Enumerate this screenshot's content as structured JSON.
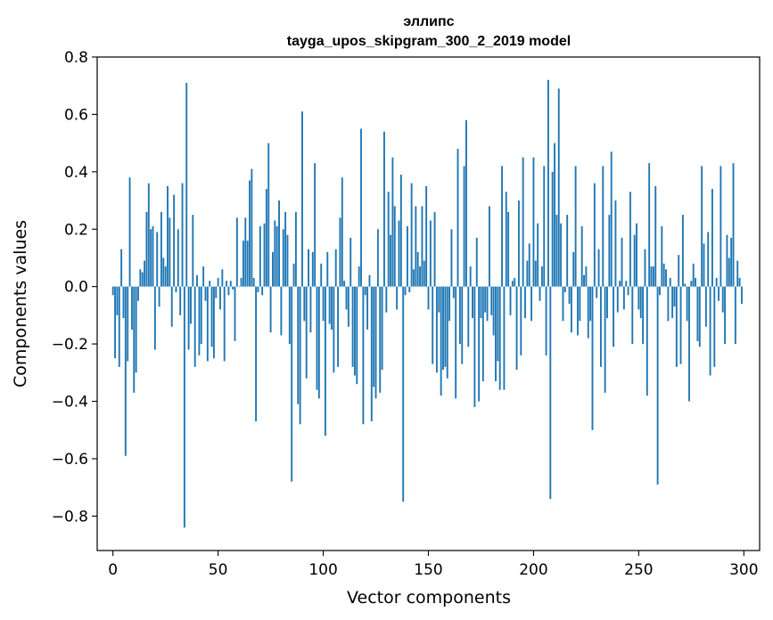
{
  "chart_data": {
    "type": "bar",
    "title": "эллипс",
    "subtitle": "tayga_upos_skipgram_300_2_2019 model",
    "xlabel": "Vector components",
    "ylabel": "Components values",
    "xlim": [
      -7.5,
      307.5
    ],
    "ylim": [
      -0.92,
      0.8
    ],
    "x_ticks": [
      0,
      50,
      100,
      150,
      200,
      250,
      300
    ],
    "x_tick_labels": [
      "0",
      "50",
      "100",
      "150",
      "200",
      "250",
      "300"
    ],
    "y_ticks": [
      0.8,
      0.6,
      0.4,
      0.2,
      0.0,
      -0.2,
      -0.4,
      -0.6,
      -0.8
    ],
    "y_tick_labels": [
      "0.8",
      "0.6",
      "0.4",
      "0.2",
      "0.0",
      "−0.2",
      "−0.4",
      "−0.6",
      "−0.8"
    ],
    "grid": false,
    "bar_color": "#1f77b4",
    "values": [
      -0.03,
      -0.25,
      -0.1,
      -0.28,
      0.13,
      -0.11,
      -0.59,
      -0.26,
      0.38,
      -0.15,
      -0.37,
      -0.3,
      -0.05,
      0.06,
      0.05,
      0.09,
      0.26,
      0.36,
      0.2,
      0.21,
      -0.22,
      0.19,
      -0.07,
      0.26,
      0.1,
      0.07,
      0.35,
      0.24,
      -0.14,
      0.32,
      -0.02,
      0.2,
      -0.1,
      0.36,
      -0.84,
      0.71,
      -0.22,
      -0.13,
      0.25,
      -0.28,
      0.04,
      -0.24,
      -0.2,
      0.07,
      -0.05,
      -0.26,
      0.02,
      -0.21,
      -0.25,
      -0.04,
      0.03,
      -0.08,
      0.06,
      -0.26,
      0.02,
      -0.03,
      0.02,
      -0.01,
      -0.19,
      0.24,
      0.0,
      0.03,
      0.16,
      0.24,
      0.16,
      0.37,
      0.41,
      0.03,
      -0.47,
      -0.02,
      0.21,
      -0.03,
      0.22,
      0.34,
      0.5,
      -0.16,
      0.12,
      0.23,
      0.21,
      0.3,
      -0.17,
      0.2,
      0.26,
      0.18,
      -0.2,
      -0.68,
      0.08,
      0.26,
      -0.41,
      -0.48,
      0.61,
      -0.12,
      -0.32,
      0.13,
      -0.16,
      0.12,
      0.43,
      -0.36,
      -0.39,
      0.08,
      -0.12,
      -0.52,
      0.12,
      -0.13,
      -0.15,
      -0.3,
      0.13,
      -0.28,
      0.24,
      0.38,
      0.02,
      -0.08,
      -0.14,
      0.17,
      -0.28,
      -0.31,
      -0.34,
      0.07,
      0.55,
      -0.48,
      -0.03,
      -0.15,
      0.04,
      -0.47,
      -0.35,
      -0.39,
      0.2,
      -0.37,
      -0.29,
      0.54,
      -0.09,
      0.33,
      0.18,
      0.45,
      0.28,
      -0.08,
      0.23,
      0.39,
      -0.75,
      -0.03,
      0.21,
      -0.02,
      0.36,
      0.06,
      0.28,
      0.12,
      0.07,
      0.28,
      0.09,
      0.35,
      -0.08,
      0.23,
      -0.27,
      0.26,
      -0.3,
      -0.09,
      -0.38,
      -0.29,
      -0.28,
      -0.32,
      -0.12,
      0.2,
      -0.04,
      -0.39,
      0.48,
      -0.2,
      -0.27,
      0.42,
      0.58,
      -0.21,
      0.07,
      -0.11,
      -0.42,
      0.17,
      -0.4,
      -0.11,
      -0.33,
      -0.09,
      -0.12,
      0.28,
      -0.1,
      -0.17,
      -0.33,
      -0.26,
      -0.36,
      0.42,
      -0.36,
      0.33,
      0.26,
      -0.1,
      0.02,
      0.03,
      -0.29,
      0.3,
      -0.24,
      0.45,
      -0.11,
      0.09,
      0.15,
      -0.12,
      0.45,
      0.09,
      0.22,
      -0.05,
      0.07,
      0.42,
      -0.24,
      0.72,
      -0.74,
      0.4,
      0.5,
      0.25,
      0.69,
      0.22,
      -0.12,
      -0.02,
      0.25,
      -0.06,
      -0.16,
      0.12,
      0.42,
      -0.17,
      -0.12,
      0.21,
      0.04,
      0.07,
      -0.18,
      -0.12,
      -0.5,
      0.36,
      -0.04,
      0.13,
      -0.28,
      0.42,
      -0.37,
      -0.11,
      0.25,
      0.47,
      -0.21,
      0.3,
      -0.09,
      0.02,
      0.17,
      -0.08,
      0.02,
      -0.03,
      0.33,
      -0.2,
      0.18,
      0.22,
      -0.08,
      -0.11,
      -0.2,
      0.13,
      -0.38,
      0.43,
      0.07,
      0.07,
      0.35,
      -0.69,
      -0.03,
      0.21,
      0.08,
      0.06,
      -0.12,
      0.03,
      -0.11,
      -0.07,
      -0.28,
      0.11,
      -0.27,
      0.25,
      0.01,
      -0.12,
      -0.4,
      0.02,
      0.08,
      0.03,
      -0.19,
      -0.21,
      0.42,
      0.15,
      -0.14,
      0.19,
      -0.31,
      0.34,
      -0.28,
      0.03,
      -0.05,
      0.42,
      -0.09,
      -0.2,
      0.18,
      0.1,
      0.17,
      0.43,
      -0.2,
      0.09,
      0.03,
      -0.06
    ]
  }
}
